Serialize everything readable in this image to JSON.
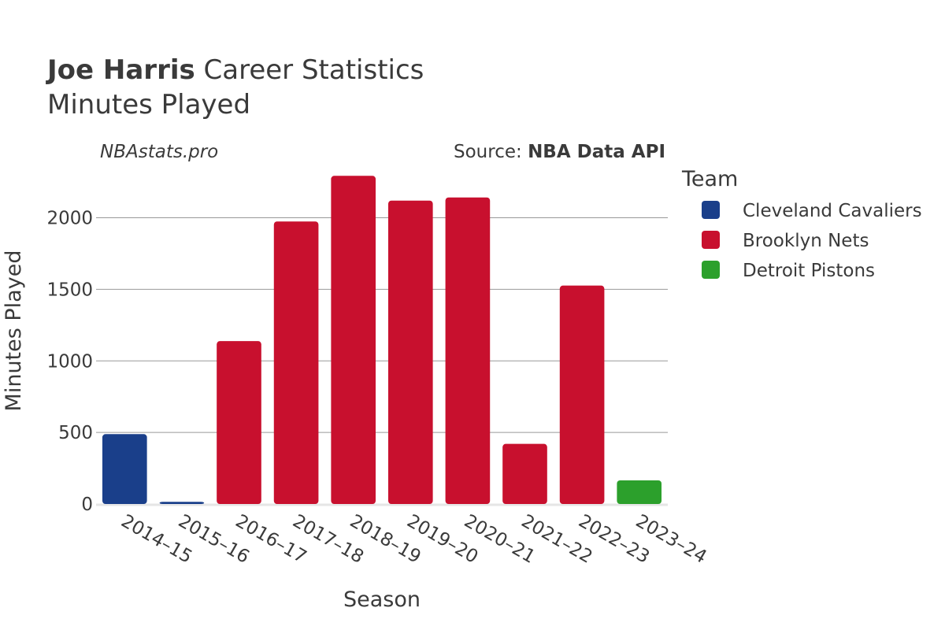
{
  "header": {
    "title_bold": "Joe Harris",
    "title_rest": " Career Statistics",
    "subtitle": "Minutes Played",
    "watermark": "NBAstats.pro",
    "source_label": "Source: ",
    "source_bold": "NBA Data API"
  },
  "colors": {
    "Cleveland Cavaliers": "#1a3f8a",
    "Brooklyn Nets": "#c8102e",
    "Detroit Pistons": "#2ca02c",
    "grid": "#999999",
    "text": "#3a3a3a"
  },
  "chart_data": {
    "type": "bar",
    "xlabel": "Season",
    "ylabel": "Minutes Played",
    "ylim": [
      0,
      2300
    ],
    "yticks": [
      0,
      500,
      1000,
      1500,
      2000
    ],
    "grid": true,
    "legend": {
      "title": "Team",
      "placement": "right",
      "entries": [
        "Cleveland Cavaliers",
        "Brooklyn Nets",
        "Detroit Pistons"
      ]
    },
    "categories": [
      "2014–15",
      "2015–16",
      "2016–17",
      "2017–18",
      "2018–19",
      "2019–20",
      "2020–21",
      "2021–22",
      "2022–23",
      "2023–24"
    ],
    "bars": [
      {
        "season": "2014–15",
        "team": "Cleveland Cavaliers",
        "value": 488
      },
      {
        "season": "2015–16",
        "team": "Cleveland Cavaliers",
        "value": 15
      },
      {
        "season": "2016–17",
        "team": "Brooklyn Nets",
        "value": 1138
      },
      {
        "season": "2017–18",
        "team": "Brooklyn Nets",
        "value": 1974
      },
      {
        "season": "2018–19",
        "team": "Brooklyn Nets",
        "value": 2293
      },
      {
        "season": "2019–20",
        "team": "Brooklyn Nets",
        "value": 2120
      },
      {
        "season": "2020–21",
        "team": "Brooklyn Nets",
        "value": 2142
      },
      {
        "season": "2021–22",
        "team": "Brooklyn Nets",
        "value": 420
      },
      {
        "season": "2022–23",
        "team": "Brooklyn Nets",
        "value": 1526
      },
      {
        "season": "2023–24",
        "team": "Detroit Pistons",
        "value": 165
      }
    ]
  }
}
